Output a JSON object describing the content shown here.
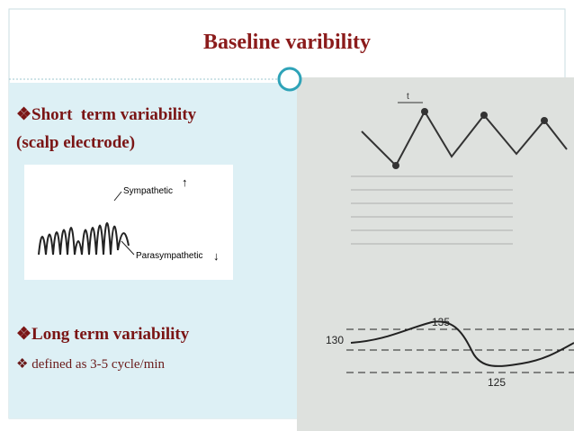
{
  "header": {
    "title": "Baseline varibility"
  },
  "items": [
    "❖Short  term variability",
    "(scalp electrode)",
    "❖Long term variability",
    "❖ defined as 3-5 cycle/min"
  ],
  "figure": {
    "labels": [
      "Sympathetic",
      "↑",
      "Parasympathetic",
      "↓"
    ]
  },
  "photo": {
    "labels": [
      "t",
      "130",
      "135",
      "125"
    ]
  }
}
